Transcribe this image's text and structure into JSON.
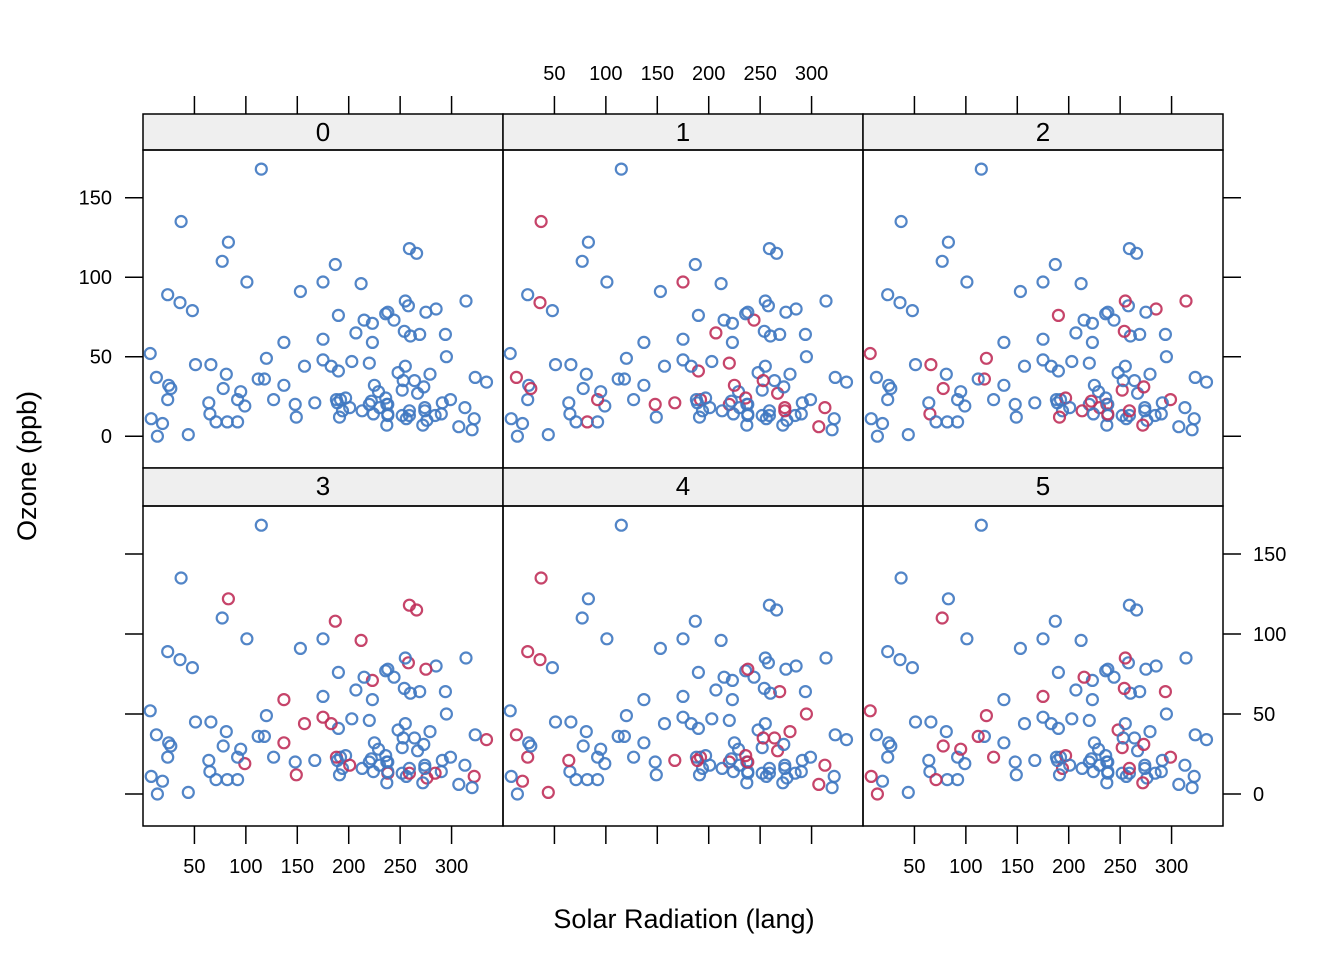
{
  "chart_data": {
    "type": "scatter",
    "xlabel": "Solar Radiation (lang)",
    "ylabel": "Ozone (ppb)",
    "xlim": [
      0,
      350
    ],
    "ylim": [
      -20,
      180
    ],
    "xticks": [
      50,
      100,
      150,
      200,
      250,
      300
    ],
    "yticks": [
      0,
      50,
      100,
      150
    ],
    "grid": false,
    "colors": {
      "base": "#3f78c1",
      "highlight": "#c0305a",
      "strip": "#efefef"
    },
    "panel_labels": [
      "0",
      "1",
      "2",
      "3",
      "4",
      "5"
    ],
    "points": [
      [
        190,
        41
      ],
      [
        118,
        36
      ],
      [
        149,
        12
      ],
      [
        313,
        18
      ],
      [
        299,
        23
      ],
      [
        99,
        19
      ],
      [
        19,
        8
      ],
      [
        194,
        16
      ],
      [
        256,
        11
      ],
      [
        290,
        14
      ],
      [
        274,
        18
      ],
      [
        65,
        14
      ],
      [
        334,
        34
      ],
      [
        307,
        6
      ],
      [
        78,
        30
      ],
      [
        322,
        11
      ],
      [
        44,
        1
      ],
      [
        8,
        11
      ],
      [
        320,
        4
      ],
      [
        25,
        32
      ],
      [
        92,
        23
      ],
      [
        66,
        45
      ],
      [
        266,
        115
      ],
      [
        13,
        37
      ],
      [
        252,
        29
      ],
      [
        223,
        71
      ],
      [
        279,
        39
      ],
      [
        127,
        23
      ],
      [
        291,
        21
      ],
      [
        323,
        37
      ],
      [
        148,
        20
      ],
      [
        191,
        12
      ],
      [
        284,
        13
      ],
      [
        37,
        135
      ],
      [
        120,
        49
      ],
      [
        137,
        32
      ],
      [
        269,
        64
      ],
      [
        248,
        40
      ],
      [
        236,
        77
      ],
      [
        101,
        97
      ],
      [
        175,
        97
      ],
      [
        314,
        85
      ],
      [
        276,
        10
      ],
      [
        267,
        27
      ],
      [
        272,
        7
      ],
      [
        175,
        48
      ],
      [
        264,
        35
      ],
      [
        175,
        61
      ],
      [
        48,
        79
      ],
      [
        260,
        63
      ],
      [
        274,
        16
      ],
      [
        285,
        80
      ],
      [
        187,
        108
      ],
      [
        220,
        20
      ],
      [
        7,
        52
      ],
      [
        258,
        82
      ],
      [
        295,
        50
      ],
      [
        294,
        64
      ],
      [
        223,
        59
      ],
      [
        81,
        39
      ],
      [
        82,
        9
      ],
      [
        213,
        16
      ],
      [
        275,
        78
      ],
      [
        253,
        35
      ],
      [
        254,
        66
      ],
      [
        83,
        122
      ],
      [
        24,
        89
      ],
      [
        77,
        110
      ],
      [
        255,
        44
      ],
      [
        229,
        28
      ],
      [
        207,
        65
      ],
      [
        222,
        22
      ],
      [
        137,
        59
      ],
      [
        192,
        23
      ],
      [
        273,
        31
      ],
      [
        157,
        44
      ],
      [
        64,
        21
      ],
      [
        71,
        9
      ],
      [
        51,
        45
      ],
      [
        115,
        168
      ],
      [
        244,
        73
      ],
      [
        190,
        76
      ],
      [
        259,
        118
      ],
      [
        36,
        84
      ],
      [
        255,
        85
      ],
      [
        212,
        96
      ],
      [
        238,
        78
      ],
      [
        215,
        73
      ],
      [
        153,
        91
      ],
      [
        203,
        47
      ],
      [
        225,
        32
      ],
      [
        237,
        20
      ],
      [
        188,
        23
      ],
      [
        167,
        21
      ],
      [
        197,
        24
      ],
      [
        183,
        44
      ],
      [
        189,
        21
      ],
      [
        95,
        28
      ],
      [
        92,
        9
      ],
      [
        252,
        13
      ],
      [
        220,
        46
      ],
      [
        230,
        18
      ],
      [
        259,
        13
      ],
      [
        236,
        24
      ],
      [
        259,
        16
      ],
      [
        238,
        13
      ],
      [
        24,
        23
      ],
      [
        112,
        36
      ],
      [
        237,
        7
      ],
      [
        224,
        14
      ],
      [
        27,
        30
      ],
      [
        238,
        14
      ],
      [
        201,
        18
      ],
      [
        238,
        20
      ],
      [
        14,
        0
      ]
    ],
    "highlight_indices": [
      [],
      [
        0,
        10,
        20,
        30,
        40,
        50,
        60,
        70,
        80,
        90,
        100,
        110,
        3,
        13,
        23,
        33,
        43,
        53,
        63,
        73,
        83,
        93,
        103
      ],
      [
        1,
        11,
        21,
        31,
        41,
        51,
        61,
        71,
        81,
        91,
        101,
        111,
        4,
        14,
        24,
        34,
        44,
        54,
        64,
        74,
        84,
        94,
        104
      ],
      [
        2,
        12,
        22,
        32,
        42,
        52,
        62,
        72,
        82,
        92,
        102,
        112,
        5,
        15,
        25,
        35,
        45,
        55,
        65,
        75,
        85,
        95,
        105
      ],
      [
        3,
        13,
        23,
        33,
        43,
        53,
        63,
        73,
        83,
        93,
        103,
        113,
        6,
        16,
        26,
        36,
        46,
        56,
        66,
        76,
        86,
        96,
        106
      ],
      [
        4,
        14,
        24,
        34,
        44,
        54,
        64,
        74,
        84,
        94,
        104,
        114,
        7,
        17,
        27,
        37,
        47,
        57,
        67,
        77,
        87,
        97,
        107
      ]
    ]
  }
}
